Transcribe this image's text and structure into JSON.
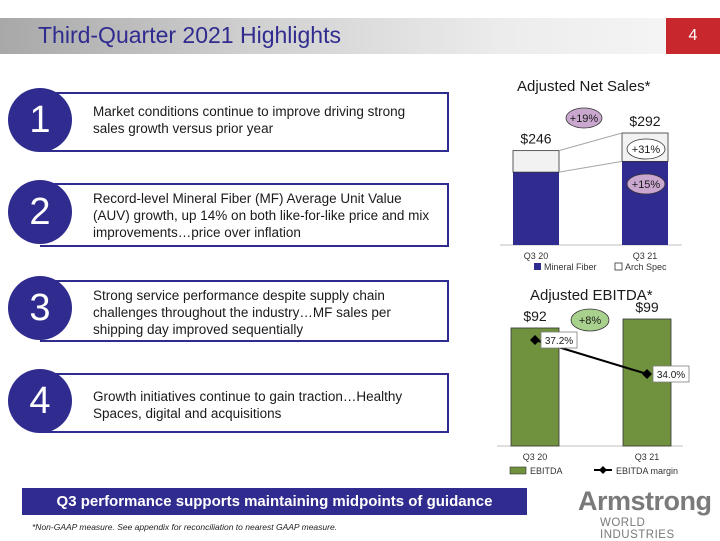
{
  "header": {
    "title": "Third-Quarter 2021 Highlights",
    "page_number": "4"
  },
  "highlights": [
    {
      "number": "1",
      "text": "Market conditions continue to improve driving strong sales growth versus prior year"
    },
    {
      "number": "2",
      "text": "Record-level Mineral Fiber (MF) Average Unit Value (AUV) growth, up 14% on both like-for-like price and mix improvements…price over inflation"
    },
    {
      "number": "3",
      "text": "Strong service performance despite supply chain challenges throughout the industry…MF sales per shipping day improved sequentially"
    },
    {
      "number": "4",
      "text": "Growth initiatives continue to gain traction…Healthy Spaces, digital and acquisitions"
    }
  ],
  "banner": "Q3 performance supports maintaining midpoints of guidance",
  "footnote": "*Non-GAAP measure. See appendix for reconciliation to nearest GAAP measure.",
  "logo": {
    "name": "Armstrong",
    "sub": "WORLD INDUSTRIES"
  },
  "colors": {
    "brand": "#2f2b8f",
    "accent_red": "#c8272d",
    "mineral_fiber": "#2f2b8f",
    "arch_spec": "#f2f2f2",
    "ebitda": "#70923e",
    "bubble_pink": "#c9a7cf",
    "bubble_green": "#a9d18e"
  },
  "chart_data": [
    {
      "type": "bar",
      "stacked": true,
      "title": "Adjusted Net Sales*",
      "categories": [
        "Q3 20",
        "Q3 21"
      ],
      "series": [
        {
          "name": "Mineral Fiber",
          "values": [
            190,
            218
          ]
        },
        {
          "name": "Arch Spec",
          "values": [
            56,
            74
          ]
        }
      ],
      "totals": [
        "$246",
        "$292"
      ],
      "annotations": {
        "total_growth": "+19%",
        "arch_spec_growth": "+31%",
        "mineral_fiber_growth": "+15%"
      },
      "legend": "bottom",
      "grid": false
    },
    {
      "type": "bar",
      "title": "Adjusted EBITDA*",
      "categories": [
        "Q3 20",
        "Q3 21"
      ],
      "series": [
        {
          "name": "EBITDA",
          "values": [
            92,
            99
          ]
        },
        {
          "name": "EBITDA margin",
          "type": "line",
          "values": [
            37.2,
            34.0
          ]
        }
      ],
      "value_labels": [
        "$92",
        "$99"
      ],
      "margin_labels": [
        "37.2%",
        "34.0%"
      ],
      "annotations": {
        "ebitda_growth": "+8%"
      },
      "legend": "bottom",
      "grid": false
    }
  ]
}
